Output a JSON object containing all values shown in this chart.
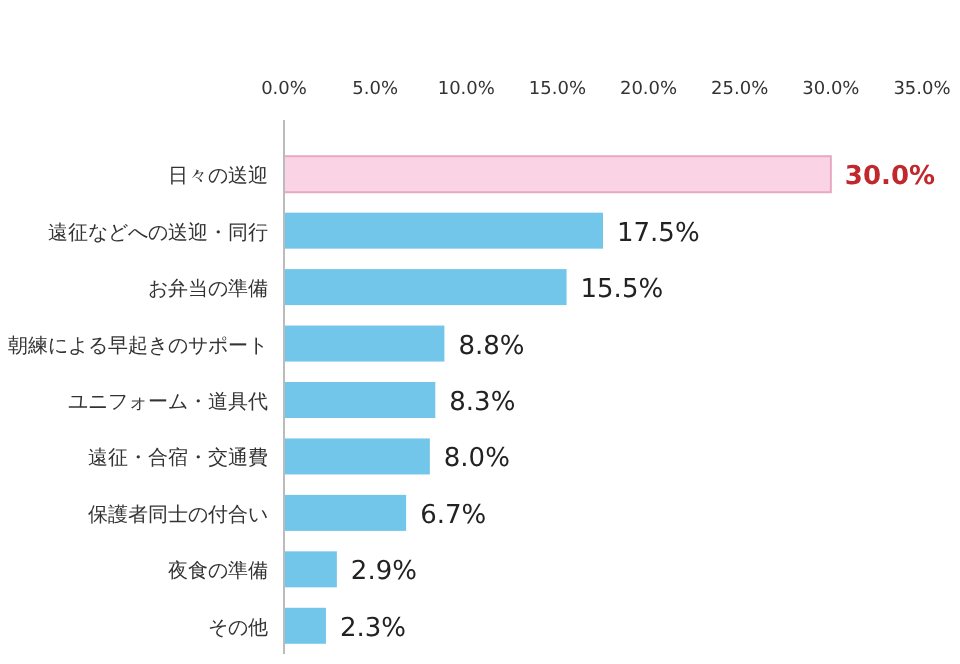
{
  "chart_data": {
    "type": "bar",
    "orientation": "horizontal",
    "categories": [
      "日々の送迎",
      "遠征などへの送迎・同行",
      "お弁当の準備",
      "朝練による早起きのサポート",
      "ユニフォーム・道具代",
      "遠征・合宿・交通費",
      "保護者同士の付合い",
      "夜食の準備",
      "その他"
    ],
    "values": [
      30.0,
      17.5,
      15.5,
      8.8,
      8.3,
      8.0,
      6.7,
      2.9,
      2.3
    ],
    "colors": [
      "#fad4e4",
      "#72c6ea",
      "#72c6ea",
      "#72c6ea",
      "#72c6ea",
      "#72c6ea",
      "#72c6ea",
      "#72c6ea",
      "#72c6ea"
    ],
    "value_labels": [
      "30.0%",
      "17.5%",
      "15.5%",
      "8.8%",
      "8.3%",
      "8.0%",
      "6.7%",
      "2.9%",
      "2.3%"
    ],
    "xlim": [
      0,
      35
    ],
    "xticks": [
      {
        "value": 0,
        "label": "0.0%"
      },
      {
        "value": 5,
        "label": "5.0%"
      },
      {
        "value": 10,
        "label": "10.0%"
      },
      {
        "value": 15,
        "label": "15.0%"
      },
      {
        "value": 20,
        "label": "20.0%"
      },
      {
        "value": 25,
        "label": "25.0%"
      },
      {
        "value": 30,
        "label": "30.0%"
      },
      {
        "value": 35,
        "label": "35.0%"
      }
    ]
  }
}
